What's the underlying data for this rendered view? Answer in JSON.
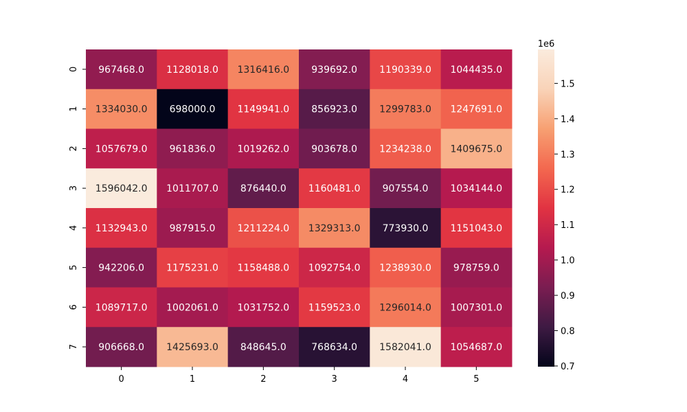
{
  "chart_data": {
    "type": "heatmap",
    "title": "",
    "xlabel": "",
    "ylabel": "",
    "x_categories": [
      "0",
      "1",
      "2",
      "3",
      "4",
      "5"
    ],
    "y_categories": [
      "0",
      "1",
      "2",
      "3",
      "4",
      "5",
      "6",
      "7"
    ],
    "values": [
      [
        967468.0,
        1128018.0,
        1316416.0,
        939692.0,
        1190339.0,
        1044435.0
      ],
      [
        1334030.0,
        698000.0,
        1149941.0,
        856923.0,
        1299783.0,
        1247691.0
      ],
      [
        1057679.0,
        961836.0,
        1019262.0,
        903678.0,
        1234238.0,
        1409675.0
      ],
      [
        1596042.0,
        1011707.0,
        876440.0,
        1160481.0,
        907554.0,
        1034144.0
      ],
      [
        1132943.0,
        987915.0,
        1211224.0,
        1329313.0,
        773930.0,
        1151043.0
      ],
      [
        942206.0,
        1175231.0,
        1158488.0,
        1092754.0,
        1238930.0,
        978759.0
      ],
      [
        1089717.0,
        1002061.0,
        1031752.0,
        1159523.0,
        1296014.0,
        1007301.0
      ],
      [
        906668.0,
        1425693.0,
        848645.0,
        768634.0,
        1582041.0,
        1054687.0
      ]
    ],
    "value_labels": [
      [
        "967468.0",
        "1128018.0",
        "1316416.0",
        "939692.0",
        "1190339.0",
        "1044435.0"
      ],
      [
        "1334030.0",
        "698000.0",
        "1149941.0",
        "856923.0",
        "1299783.0",
        "1247691.0"
      ],
      [
        "1057679.0",
        "961836.0",
        "1019262.0",
        "903678.0",
        "1234238.0",
        "1409675.0"
      ],
      [
        "1596042.0",
        "1011707.0",
        "876440.0",
        "1160481.0",
        "907554.0",
        "1034144.0"
      ],
      [
        "1132943.0",
        "987915.0",
        "1211224.0",
        "1329313.0",
        "773930.0",
        "1151043.0"
      ],
      [
        "942206.0",
        "1175231.0",
        "1158488.0",
        "1092754.0",
        "1238930.0",
        "978759.0"
      ],
      [
        "1089717.0",
        "1002061.0",
        "1031752.0",
        "1159523.0",
        "1296014.0",
        "1007301.0"
      ],
      [
        "906668.0",
        "1425693.0",
        "848645.0",
        "768634.0",
        "1582041.0",
        "1054687.0"
      ]
    ],
    "colorbar": {
      "min": 698000,
      "max": 1596042,
      "ticks": [
        0.7,
        0.8,
        0.9,
        1.0,
        1.1,
        1.2,
        1.3,
        1.4,
        1.5
      ],
      "tick_labels": [
        "0.7",
        "0.8",
        "0.9",
        "1.0",
        "1.1",
        "1.2",
        "1.3",
        "1.4",
        "1.5"
      ],
      "multiplier_label": "1e6",
      "colormap": "rocket",
      "colormap_stops": [
        "#03051a",
        "#3e1a43",
        "#7a1d51",
        "#b51a4f",
        "#e13342",
        "#f3684f",
        "#f7a072",
        "#f9d3b8",
        "#faebdd"
      ]
    },
    "grid": false
  }
}
